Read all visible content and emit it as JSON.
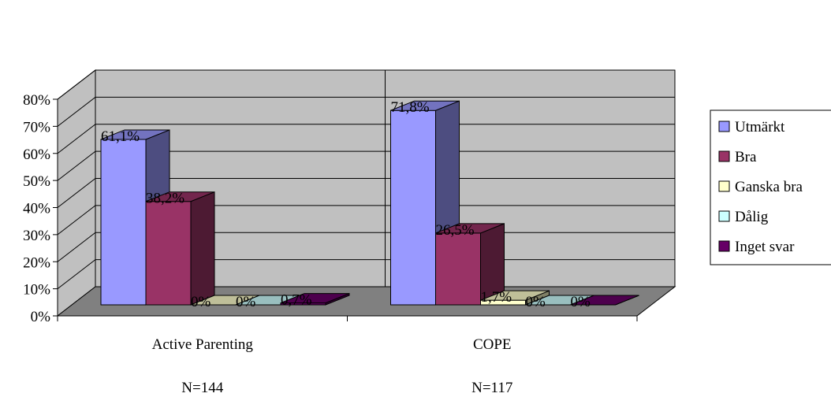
{
  "chart_data": {
    "type": "bar",
    "categories": [
      "Active Parenting",
      "COPE"
    ],
    "category_notes": [
      "N=144",
      "N=117"
    ],
    "series": [
      {
        "name": "Utmärkt",
        "values": [
          61.1,
          71.8
        ],
        "labels": [
          "61,1%",
          "71,8%"
        ],
        "color": "#9999ff"
      },
      {
        "name": "Bra",
        "values": [
          38.2,
          26.5
        ],
        "labels": [
          "38,2%",
          "26,5%"
        ],
        "color": "#993366"
      },
      {
        "name": "Ganska bra",
        "values": [
          0,
          1.7
        ],
        "labels": [
          "0%",
          "1,7%"
        ],
        "color": "#ffffcc"
      },
      {
        "name": "Dålig",
        "values": [
          0,
          0
        ],
        "labels": [
          "0%",
          "0%"
        ],
        "color": "#ccffff"
      },
      {
        "name": "Inget svar",
        "values": [
          0.7,
          0
        ],
        "labels": [
          "0,7%",
          "0%"
        ],
        "color": "#660066"
      }
    ],
    "yticks": [
      "0%",
      "10%",
      "20%",
      "30%",
      "40%",
      "50%",
      "60%",
      "70%",
      "80%"
    ],
    "ylim": [
      0,
      80
    ],
    "grid": true,
    "legend": "right",
    "style": "3d-clustered-bar",
    "wall_color": "#c0c0c0",
    "floor_color": "#808080"
  }
}
